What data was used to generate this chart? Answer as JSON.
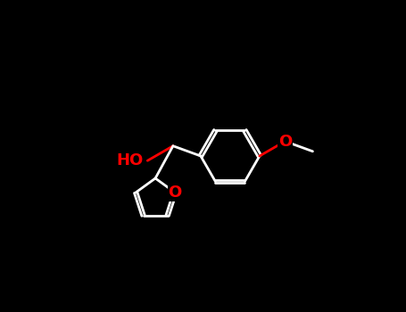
{
  "background_color": "#000000",
  "line_color": "#ffffff",
  "oxygen_color": "#ff0000",
  "label_ho": "HO",
  "label_o_furan": "O",
  "label_o_methoxy": "O",
  "line_width": 2.0,
  "font_size": 13
}
